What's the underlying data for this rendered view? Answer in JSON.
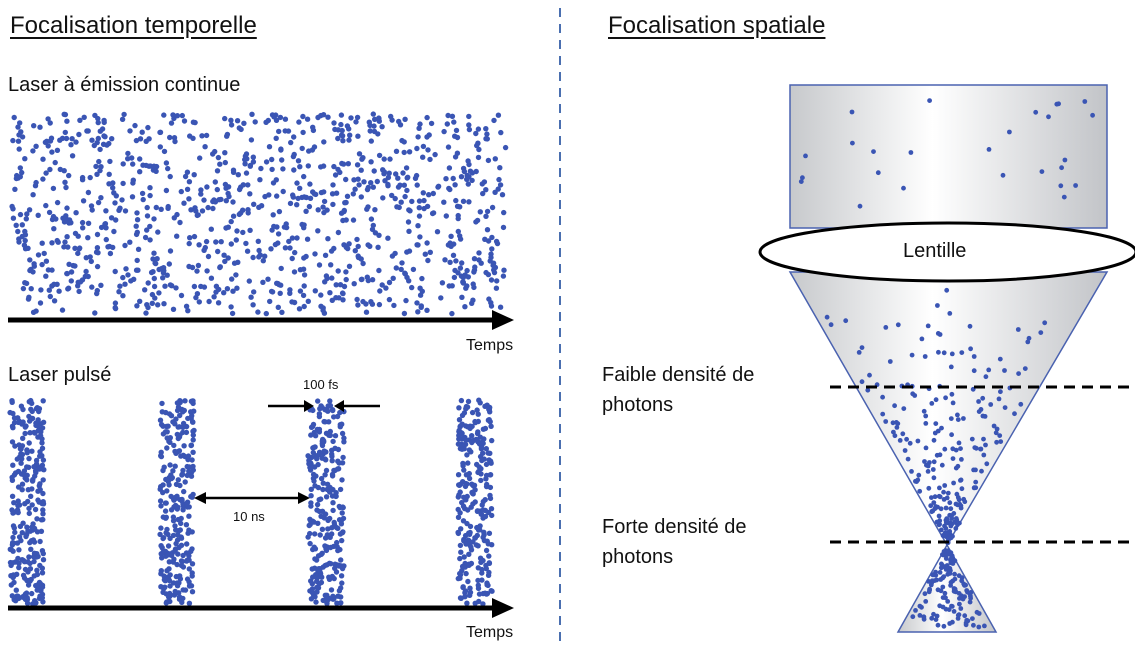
{
  "left": {
    "title": "Focalisation temporelle",
    "continuous_label": "Laser à émission continue",
    "pulsed_label": "Laser pulsé",
    "axis_label_top": "Temps",
    "axis_label_bottom": "Temps",
    "pulse_width": "100 fs",
    "pulse_spacing": "10 ns"
  },
  "right": {
    "title": "Focalisation spatiale",
    "lens_label": "Lentille",
    "low_density": "Faible densité de photons",
    "high_density": "Forte densité de photons"
  },
  "colors": {
    "photon": "#3a55b4",
    "divider": "#4a6fb0",
    "beam_edge": "#4a62b0"
  }
}
